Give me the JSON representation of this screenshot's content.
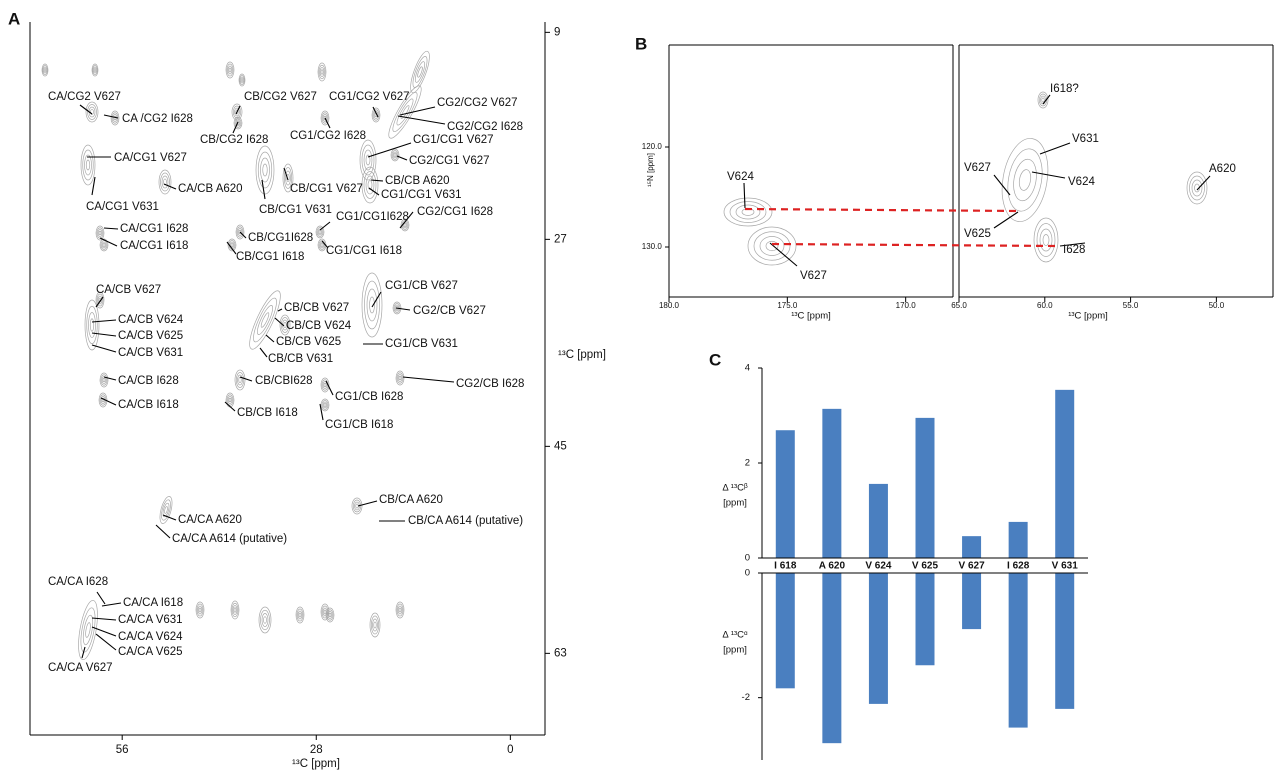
{
  "chart_data": [
    {
      "type": "spectrum",
      "panel_label": "A",
      "xlabel": "¹³C [ppm]",
      "ylabel": "¹³C [ppm]",
      "xlim": [
        69.3,
        -5
      ],
      "ylim": [
        8.1,
        70.1
      ],
      "xticks": [
        56,
        28,
        0
      ],
      "yticks": [
        9,
        27,
        45,
        63
      ],
      "annotations": [
        "CA/CG2 V627",
        "CA /CG2 I628",
        "CB/CG2 V627",
        "CB/CG2 I628",
        "CG1/CG2 V627",
        "CG1/CG2 I628",
        "CG2/CG2 V627",
        "CG2/CG2 I628",
        "CG1/CG1 V627",
        "CG2/CG1 V627",
        "CA/CG1 V627",
        "CA/CB A620",
        "CB/CG1 V627",
        "CB/CB A620",
        "CG1/CG1 V631",
        "CA/CG1 V631",
        "CB/CG1 V631",
        "CG2/CG1 I628",
        "CG1/CG1I628",
        "CA/CG1 I628",
        "CA/CG1 I618",
        "CB/CG1I628",
        "CB/CG1 I618",
        "CG1/CG1 I618",
        "CA/CB V627",
        "CA/CB V624",
        "CA/CB V625",
        "CA/CB V631",
        "CG1/CB V627",
        "CG2/CB V627",
        "CB/CB V627",
        "CB/CB V624",
        "CB/CB V625",
        "CB/CB V631",
        "CG1/CB V631",
        "CA/CB I628",
        "CA/CB I618",
        "CB/CBI628",
        "CB/CB I618",
        "CG2/CB I628",
        "CG1/CB I628",
        "CG1/CB I618",
        "CB/CA A620",
        "CB/CA A614 (putative)",
        "CA/CA A620",
        "CA/CA A614 (putative)",
        "CA/CA I628",
        "CA/CA I618",
        "CA/CA V631",
        "CA/CA V624",
        "CA/CA V625",
        "CA/CA V627"
      ]
    },
    {
      "type": "spectrum",
      "panel_label": "B",
      "xlabel": "¹³C [ppm]",
      "ylabel": "¹⁵N [ppm]",
      "xlim": [
        180,
        168
      ],
      "ylim": [
        109.8,
        135
      ],
      "xticks": [
        {
          "value": 180,
          "label": "180.0"
        },
        {
          "value": 175,
          "label": "175.0"
        },
        {
          "value": 170,
          "label": "170.0"
        }
      ],
      "yticks": [
        {
          "value": 120,
          "label": "120.0"
        },
        {
          "value": 130,
          "label": "130.0"
        }
      ],
      "annotations": [
        "V624",
        "V627"
      ]
    },
    {
      "type": "spectrum",
      "xlabel": "¹³C [ppm]",
      "xlim": [
        65,
        46.7
      ],
      "ylim": [
        109.8,
        135
      ],
      "xticks": [
        {
          "value": 65,
          "label": "65.0"
        },
        {
          "value": 60,
          "label": "60.0"
        },
        {
          "value": 55,
          "label": "55.0"
        },
        {
          "value": 50,
          "label": "50.0"
        }
      ],
      "annotations": [
        "I618?",
        "V631",
        "V627",
        "V624",
        "V625",
        "I628",
        "A620"
      ]
    },
    {
      "type": "bar",
      "panel_label": "C",
      "ylabel": [
        "Δ ¹³Cᵝ",
        "[ppm]"
      ],
      "categories": [
        "I 618",
        "A 620",
        "V 624",
        "V 625",
        "V 627",
        "I 628",
        "V 631"
      ],
      "values": [
        2.69,
        3.14,
        1.56,
        2.95,
        0.46,
        0.76,
        3.54
      ],
      "color": "#4a7fc0",
      "ylim": [
        0,
        4
      ],
      "yticks": [
        0,
        2,
        4
      ]
    },
    {
      "type": "bar",
      "ylabel": [
        "Δ ¹³Cᵅ",
        "[ppm]"
      ],
      "values": [
        -1.85,
        -2.73,
        -2.1,
        -1.48,
        -0.9,
        -2.48,
        -2.18
      ],
      "color": "#4a7fc0",
      "ylim": [
        -3,
        0
      ],
      "yticks": [
        -2,
        0
      ]
    }
  ]
}
